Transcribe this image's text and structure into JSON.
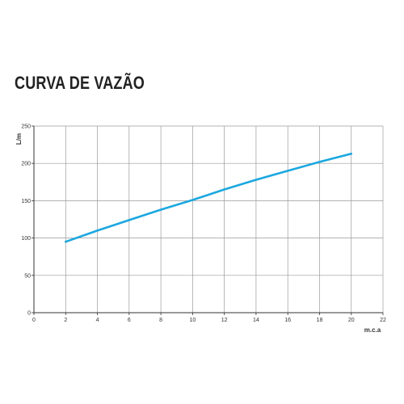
{
  "chart_data": {
    "type": "line",
    "title": "CURVA DE VAZÃO",
    "xlabel": "m.c.a",
    "ylabel": "L/m",
    "xlim": [
      0,
      22
    ],
    "ylim": [
      0,
      250
    ],
    "xticks": [
      0,
      2,
      4,
      6,
      8,
      10,
      12,
      14,
      16,
      18,
      20,
      22
    ],
    "yticks": [
      0,
      50,
      100,
      150,
      200,
      250
    ],
    "grid": true,
    "series": [
      {
        "color": "#1ba8df",
        "x": [
          2,
          4,
          6,
          8,
          10,
          12,
          14,
          16,
          18,
          20
        ],
        "y": [
          95,
          110,
          124,
          138,
          151,
          165,
          178,
          190,
          202,
          213
        ]
      }
    ]
  }
}
